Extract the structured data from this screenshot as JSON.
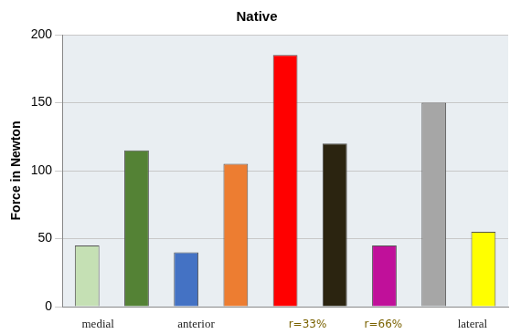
{
  "chart_data": {
    "type": "bar",
    "title": "Native",
    "y_label": "Force in Newton",
    "categories": [
      null,
      null,
      null,
      null,
      null,
      null,
      null,
      null,
      null
    ],
    "values": [
      45,
      115,
      40,
      105,
      185,
      120,
      45,
      150,
      55
    ],
    "colors": [
      "#c5e0b4",
      "#548235",
      "#4472c4",
      "#ed7d31",
      "#ff0000",
      "#2b2410",
      "#c0109a",
      "#a6a6a6",
      "#ffff00"
    ],
    "ylim": [
      0,
      200
    ],
    "yticks": [
      0,
      50,
      100,
      150,
      200
    ],
    "grid": true,
    "tick_labels": "y",
    "annotations": [
      "medial",
      "anterior",
      "r=33%",
      "r=66%",
      "lateral"
    ]
  }
}
